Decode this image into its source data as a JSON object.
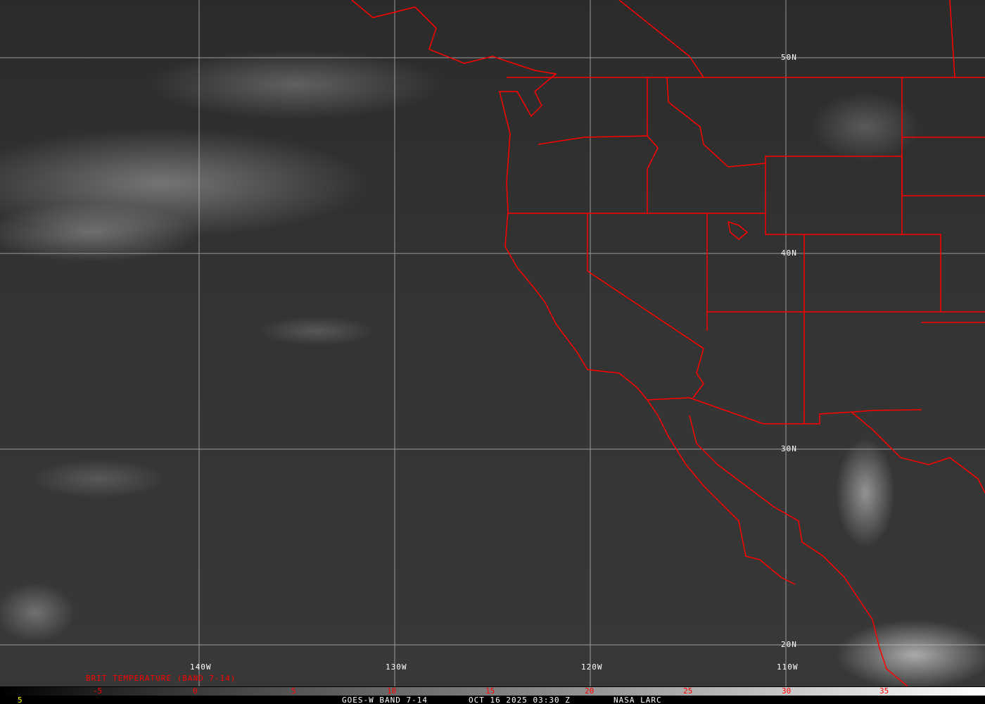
{
  "title_line": "GOES-W BAND 7-14",
  "timestamp": "OCT 16 2025 03:30 Z",
  "credit": "NASA LARC",
  "product_label": "BRIT TEMPERATURE (BAND 7-14)",
  "corner_value": "5",
  "latitude_labels": [
    "50N",
    "40N",
    "30N",
    "20N"
  ],
  "longitude_labels": [
    "140W",
    "130W",
    "120W",
    "110W"
  ],
  "scale_ticks": [
    "-5",
    "0",
    "5",
    "10",
    "15",
    "20",
    "25",
    "30",
    "35"
  ],
  "colors": {
    "borders": "#ff0000",
    "grid": "#c8c8c8",
    "scale_text": "#ff0000",
    "corner_value": "#ffff00"
  }
}
